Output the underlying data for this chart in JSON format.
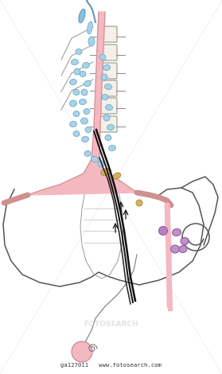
{
  "bg_color": "#ffffff",
  "aorta_color": "#f4b8c1",
  "lymph_node_color": "#a8d4e8",
  "lymph_node_outline": "#6aaac8",
  "yellow_node_color": "#d4b060",
  "yellow_node_outline": "#b09040",
  "purple_node_color": "#c090c8",
  "purple_node_outline": "#9060a0",
  "vessel_color": "#f4b8c1",
  "vessel_edge": "#d09090",
  "duct_color": "#1a1a1a",
  "bone_edge": "#888888",
  "bottom_text": "ga127011   www.fotosearch.com"
}
